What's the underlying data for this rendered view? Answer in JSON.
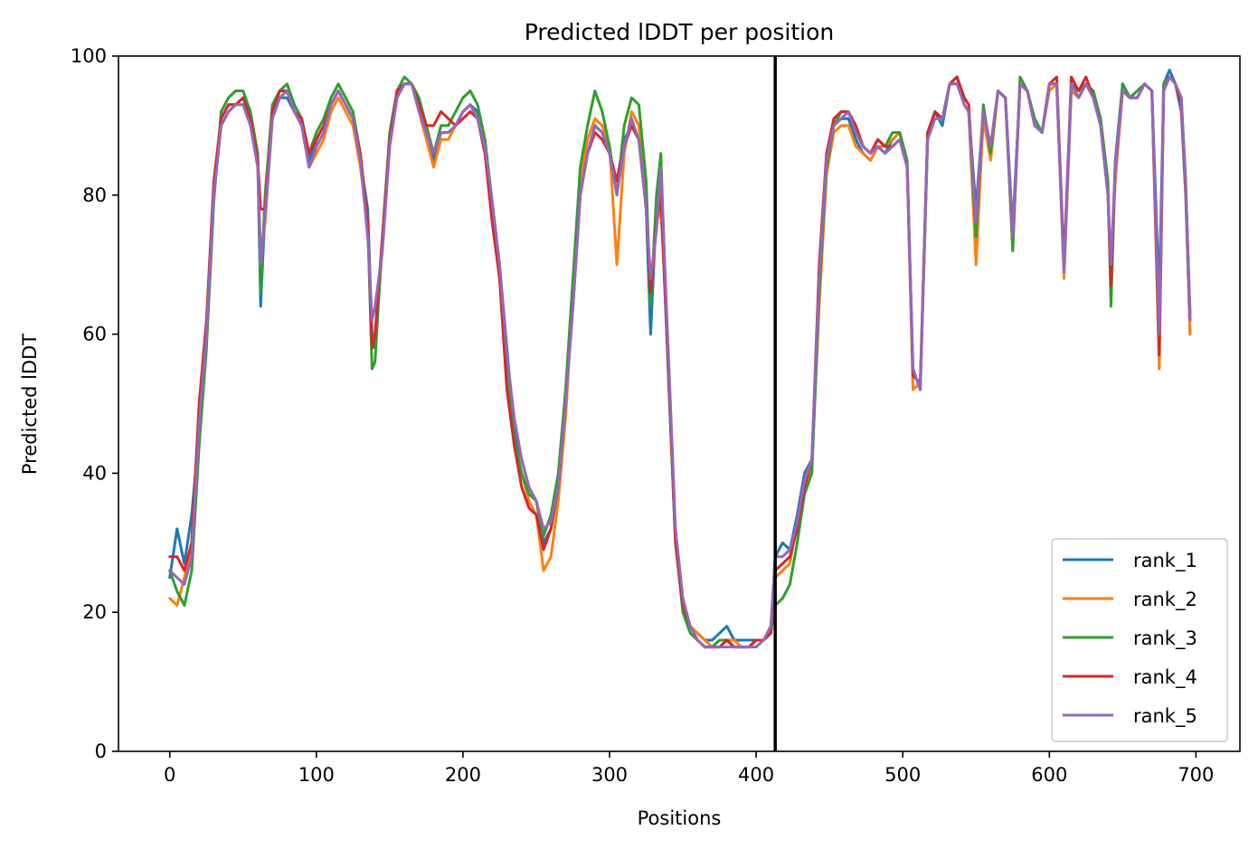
{
  "chart_data": {
    "type": "line",
    "title": "Predicted lDDT per position",
    "xlabel": "Positions",
    "ylabel": "Predicted lDDT",
    "xlim": [
      -35,
      730
    ],
    "ylim": [
      0,
      100
    ],
    "x_ticks": [
      0,
      100,
      200,
      300,
      400,
      500,
      600,
      700
    ],
    "x_tick_labels": [
      "0",
      "100",
      "200",
      "300",
      "400",
      "500",
      "600",
      "700"
    ],
    "y_ticks": [
      0,
      20,
      40,
      60,
      80,
      100
    ],
    "y_tick_labels": [
      "0",
      "20",
      "40",
      "60",
      "80",
      "100"
    ],
    "grid": false,
    "legend_position": "lower-right",
    "vertical_line": {
      "x": 413,
      "color": "#000000"
    },
    "x": [
      0,
      5,
      10,
      15,
      20,
      25,
      30,
      35,
      40,
      45,
      50,
      55,
      60,
      62,
      65,
      70,
      75,
      80,
      85,
      90,
      95,
      100,
      105,
      110,
      115,
      120,
      125,
      130,
      135,
      138,
      140,
      145,
      150,
      155,
      160,
      165,
      170,
      175,
      180,
      185,
      190,
      195,
      200,
      205,
      210,
      215,
      220,
      225,
      230,
      235,
      240,
      245,
      250,
      255,
      260,
      265,
      270,
      275,
      280,
      285,
      290,
      295,
      300,
      305,
      310,
      315,
      320,
      325,
      328,
      332,
      335,
      340,
      345,
      350,
      355,
      360,
      365,
      370,
      375,
      380,
      385,
      390,
      395,
      400,
      405,
      410,
      413,
      418,
      423,
      428,
      433,
      438,
      443,
      448,
      453,
      458,
      463,
      468,
      473,
      478,
      483,
      488,
      493,
      498,
      503,
      507,
      512,
      517,
      522,
      527,
      532,
      537,
      542,
      545,
      550,
      555,
      560,
      565,
      570,
      575,
      580,
      585,
      590,
      595,
      600,
      605,
      610,
      615,
      620,
      625,
      630,
      635,
      640,
      642,
      645,
      650,
      655,
      660,
      665,
      670,
      675,
      678,
      682,
      686,
      690,
      693,
      696
    ],
    "series": [
      {
        "name": "rank_1",
        "color": "#1f77b4",
        "values": [
          25,
          32,
          27,
          34,
          46,
          60,
          80,
          91,
          93,
          93,
          94,
          91,
          85,
          64,
          78,
          92,
          94,
          94,
          92,
          90,
          85,
          88,
          90,
          93,
          95,
          93,
          91,
          85,
          78,
          60,
          58,
          73,
          88,
          94,
          96,
          96,
          93,
          89,
          85,
          89,
          89,
          90,
          92,
          93,
          92,
          88,
          78,
          70,
          58,
          46,
          42,
          38,
          36,
          30,
          32,
          38,
          50,
          64,
          80,
          86,
          90,
          89,
          86,
          82,
          88,
          90,
          88,
          78,
          60,
          78,
          80,
          55,
          30,
          21,
          18,
          17,
          16,
          16,
          17,
          18,
          16,
          16,
          16,
          16,
          16,
          17,
          28,
          30,
          29,
          34,
          40,
          42,
          66,
          84,
          90,
          91,
          91,
          88,
          86,
          85,
          87,
          86,
          88,
          89,
          84,
          55,
          52,
          88,
          92,
          90,
          96,
          96,
          93,
          92,
          78,
          92,
          87,
          95,
          94,
          75,
          96,
          95,
          90,
          89,
          96,
          96,
          70,
          96,
          94,
          96,
          94,
          90,
          80,
          68,
          85,
          96,
          94,
          94,
          96,
          95,
          65,
          96,
          98,
          96,
          92,
          80,
          60
        ]
      },
      {
        "name": "rank_2",
        "color": "#ff7f0e",
        "values": [
          22,
          21,
          25,
          30,
          48,
          60,
          80,
          90,
          92,
          93,
          93,
          91,
          84,
          72,
          76,
          91,
          94,
          95,
          92,
          90,
          84,
          86,
          88,
          92,
          94,
          92,
          90,
          84,
          76,
          58,
          60,
          72,
          87,
          94,
          96,
          96,
          92,
          88,
          84,
          88,
          88,
          90,
          92,
          93,
          91,
          87,
          78,
          68,
          56,
          44,
          40,
          36,
          34,
          26,
          28,
          36,
          48,
          66,
          82,
          88,
          91,
          90,
          87,
          70,
          86,
          92,
          90,
          80,
          65,
          76,
          78,
          58,
          31,
          20,
          18,
          17,
          16,
          15,
          16,
          16,
          16,
          15,
          15,
          16,
          16,
          17,
          25,
          26,
          27,
          33,
          38,
          41,
          64,
          83,
          89,
          90,
          90,
          87,
          86,
          85,
          87,
          87,
          88,
          89,
          84,
          52,
          53,
          88,
          91,
          91,
          96,
          97,
          93,
          92,
          70,
          91,
          85,
          95,
          94,
          72,
          96,
          95,
          90,
          89,
          95,
          96,
          68,
          95,
          94,
          96,
          94,
          90,
          80,
          70,
          82,
          95,
          94,
          94,
          96,
          95,
          55,
          95,
          97,
          96,
          93,
          81,
          60
        ]
      },
      {
        "name": "rank_3",
        "color": "#2ca02c",
        "values": [
          26,
          23,
          21,
          26,
          44,
          58,
          79,
          92,
          94,
          95,
          95,
          92,
          86,
          66,
          80,
          93,
          95,
          96,
          93,
          91,
          86,
          89,
          91,
          94,
          96,
          94,
          92,
          86,
          76,
          55,
          56,
          74,
          89,
          95,
          97,
          96,
          94,
          90,
          86,
          90,
          90,
          92,
          94,
          95,
          93,
          88,
          79,
          70,
          57,
          45,
          40,
          37,
          36,
          31,
          34,
          40,
          52,
          68,
          84,
          90,
          95,
          92,
          87,
          80,
          90,
          94,
          93,
          82,
          64,
          80,
          86,
          55,
          30,
          20,
          17,
          16,
          15,
          15,
          16,
          16,
          15,
          15,
          15,
          16,
          16,
          17,
          21,
          22,
          24,
          30,
          37,
          40,
          66,
          84,
          90,
          92,
          92,
          89,
          87,
          86,
          88,
          87,
          89,
          89,
          85,
          54,
          53,
          89,
          92,
          91,
          96,
          97,
          93,
          92,
          74,
          93,
          86,
          95,
          94,
          72,
          97,
          95,
          91,
          89,
          96,
          96,
          69,
          96,
          95,
          96,
          95,
          91,
          82,
          64,
          84,
          96,
          94,
          95,
          96,
          95,
          58,
          96,
          97,
          96,
          94,
          82,
          62
        ]
      },
      {
        "name": "rank_4",
        "color": "#d62728",
        "values": [
          28,
          28,
          26,
          30,
          50,
          62,
          82,
          91,
          93,
          93,
          94,
          91,
          85,
          78,
          78,
          92,
          95,
          95,
          92,
          91,
          86,
          88,
          90,
          93,
          95,
          93,
          91,
          86,
          76,
          58,
          60,
          74,
          88,
          95,
          96,
          96,
          93,
          90,
          90,
          92,
          91,
          90,
          91,
          92,
          91,
          86,
          76,
          68,
          52,
          44,
          38,
          35,
          34,
          29,
          32,
          38,
          50,
          64,
          80,
          86,
          89,
          88,
          86,
          82,
          87,
          90,
          88,
          78,
          66,
          76,
          80,
          56,
          30,
          21,
          18,
          16,
          15,
          15,
          15,
          16,
          15,
          15,
          15,
          16,
          16,
          17,
          26,
          27,
          28,
          32,
          38,
          42,
          70,
          86,
          91,
          92,
          92,
          90,
          87,
          86,
          88,
          87,
          87,
          88,
          84,
          54,
          53,
          89,
          92,
          91,
          96,
          97,
          94,
          93,
          76,
          92,
          87,
          95,
          94,
          74,
          96,
          95,
          90,
          89,
          96,
          97,
          70,
          97,
          95,
          97,
          94,
          90,
          80,
          67,
          84,
          95,
          94,
          94,
          96,
          95,
          57,
          95,
          97,
          96,
          93,
          81,
          63
        ]
      },
      {
        "name": "rank_5",
        "color": "#9467bd",
        "values": [
          26,
          25,
          24,
          28,
          47,
          60,
          80,
          90,
          92,
          93,
          93,
          90,
          84,
          70,
          77,
          91,
          94,
          95,
          92,
          90,
          84,
          87,
          89,
          93,
          95,
          93,
          91,
          85,
          74,
          62,
          64,
          72,
          87,
          94,
          96,
          96,
          92,
          89,
          86,
          89,
          89,
          90,
          92,
          93,
          91,
          87,
          79,
          70,
          57,
          48,
          42,
          38,
          36,
          32,
          33,
          38,
          50,
          64,
          80,
          86,
          90,
          89,
          86,
          80,
          87,
          91,
          88,
          78,
          68,
          75,
          84,
          58,
          32,
          22,
          18,
          16,
          15,
          15,
          15,
          15,
          15,
          15,
          15,
          15,
          16,
          18,
          28,
          28,
          29,
          33,
          39,
          42,
          68,
          85,
          90,
          91,
          92,
          89,
          87,
          86,
          87,
          86,
          87,
          88,
          84,
          55,
          52,
          88,
          91,
          91,
          96,
          96,
          93,
          92,
          76,
          92,
          87,
          95,
          94,
          74,
          96,
          95,
          90,
          89,
          96,
          96,
          69,
          96,
          94,
          96,
          94,
          90,
          80,
          70,
          84,
          95,
          94,
          94,
          96,
          95,
          60,
          95,
          97,
          96,
          94,
          82,
          62
        ]
      }
    ]
  }
}
